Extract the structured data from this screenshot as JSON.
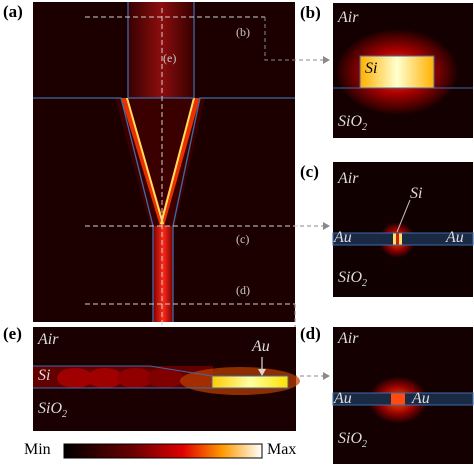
{
  "panels": {
    "a": {
      "letter": "(a)",
      "callouts": [
        "(e)",
        "(b)",
        "(c)",
        "(d)"
      ]
    },
    "b": {
      "letter": "(b)",
      "labels": {
        "air": "Air",
        "si": "Si",
        "sio2": "SiO",
        "sio2_sub": "2"
      }
    },
    "c": {
      "letter": "(c)",
      "labels": {
        "air": "Air",
        "si": "Si",
        "au_left": "Au",
        "au_right": "Au",
        "sio2": "SiO",
        "sio2_sub": "2"
      }
    },
    "d": {
      "letter": "(d)",
      "labels": {
        "air": "Air",
        "au_left": "Au",
        "au_right": "Au",
        "sio2": "SiO",
        "sio2_sub": "2"
      }
    },
    "e": {
      "letter": "(e)",
      "labels": {
        "air": "Air",
        "si": "Si",
        "au": "Au",
        "sio2": "SiO",
        "sio2_sub": "2"
      }
    }
  },
  "colorbar": {
    "min_label": "Min",
    "max_label": "Max"
  }
}
